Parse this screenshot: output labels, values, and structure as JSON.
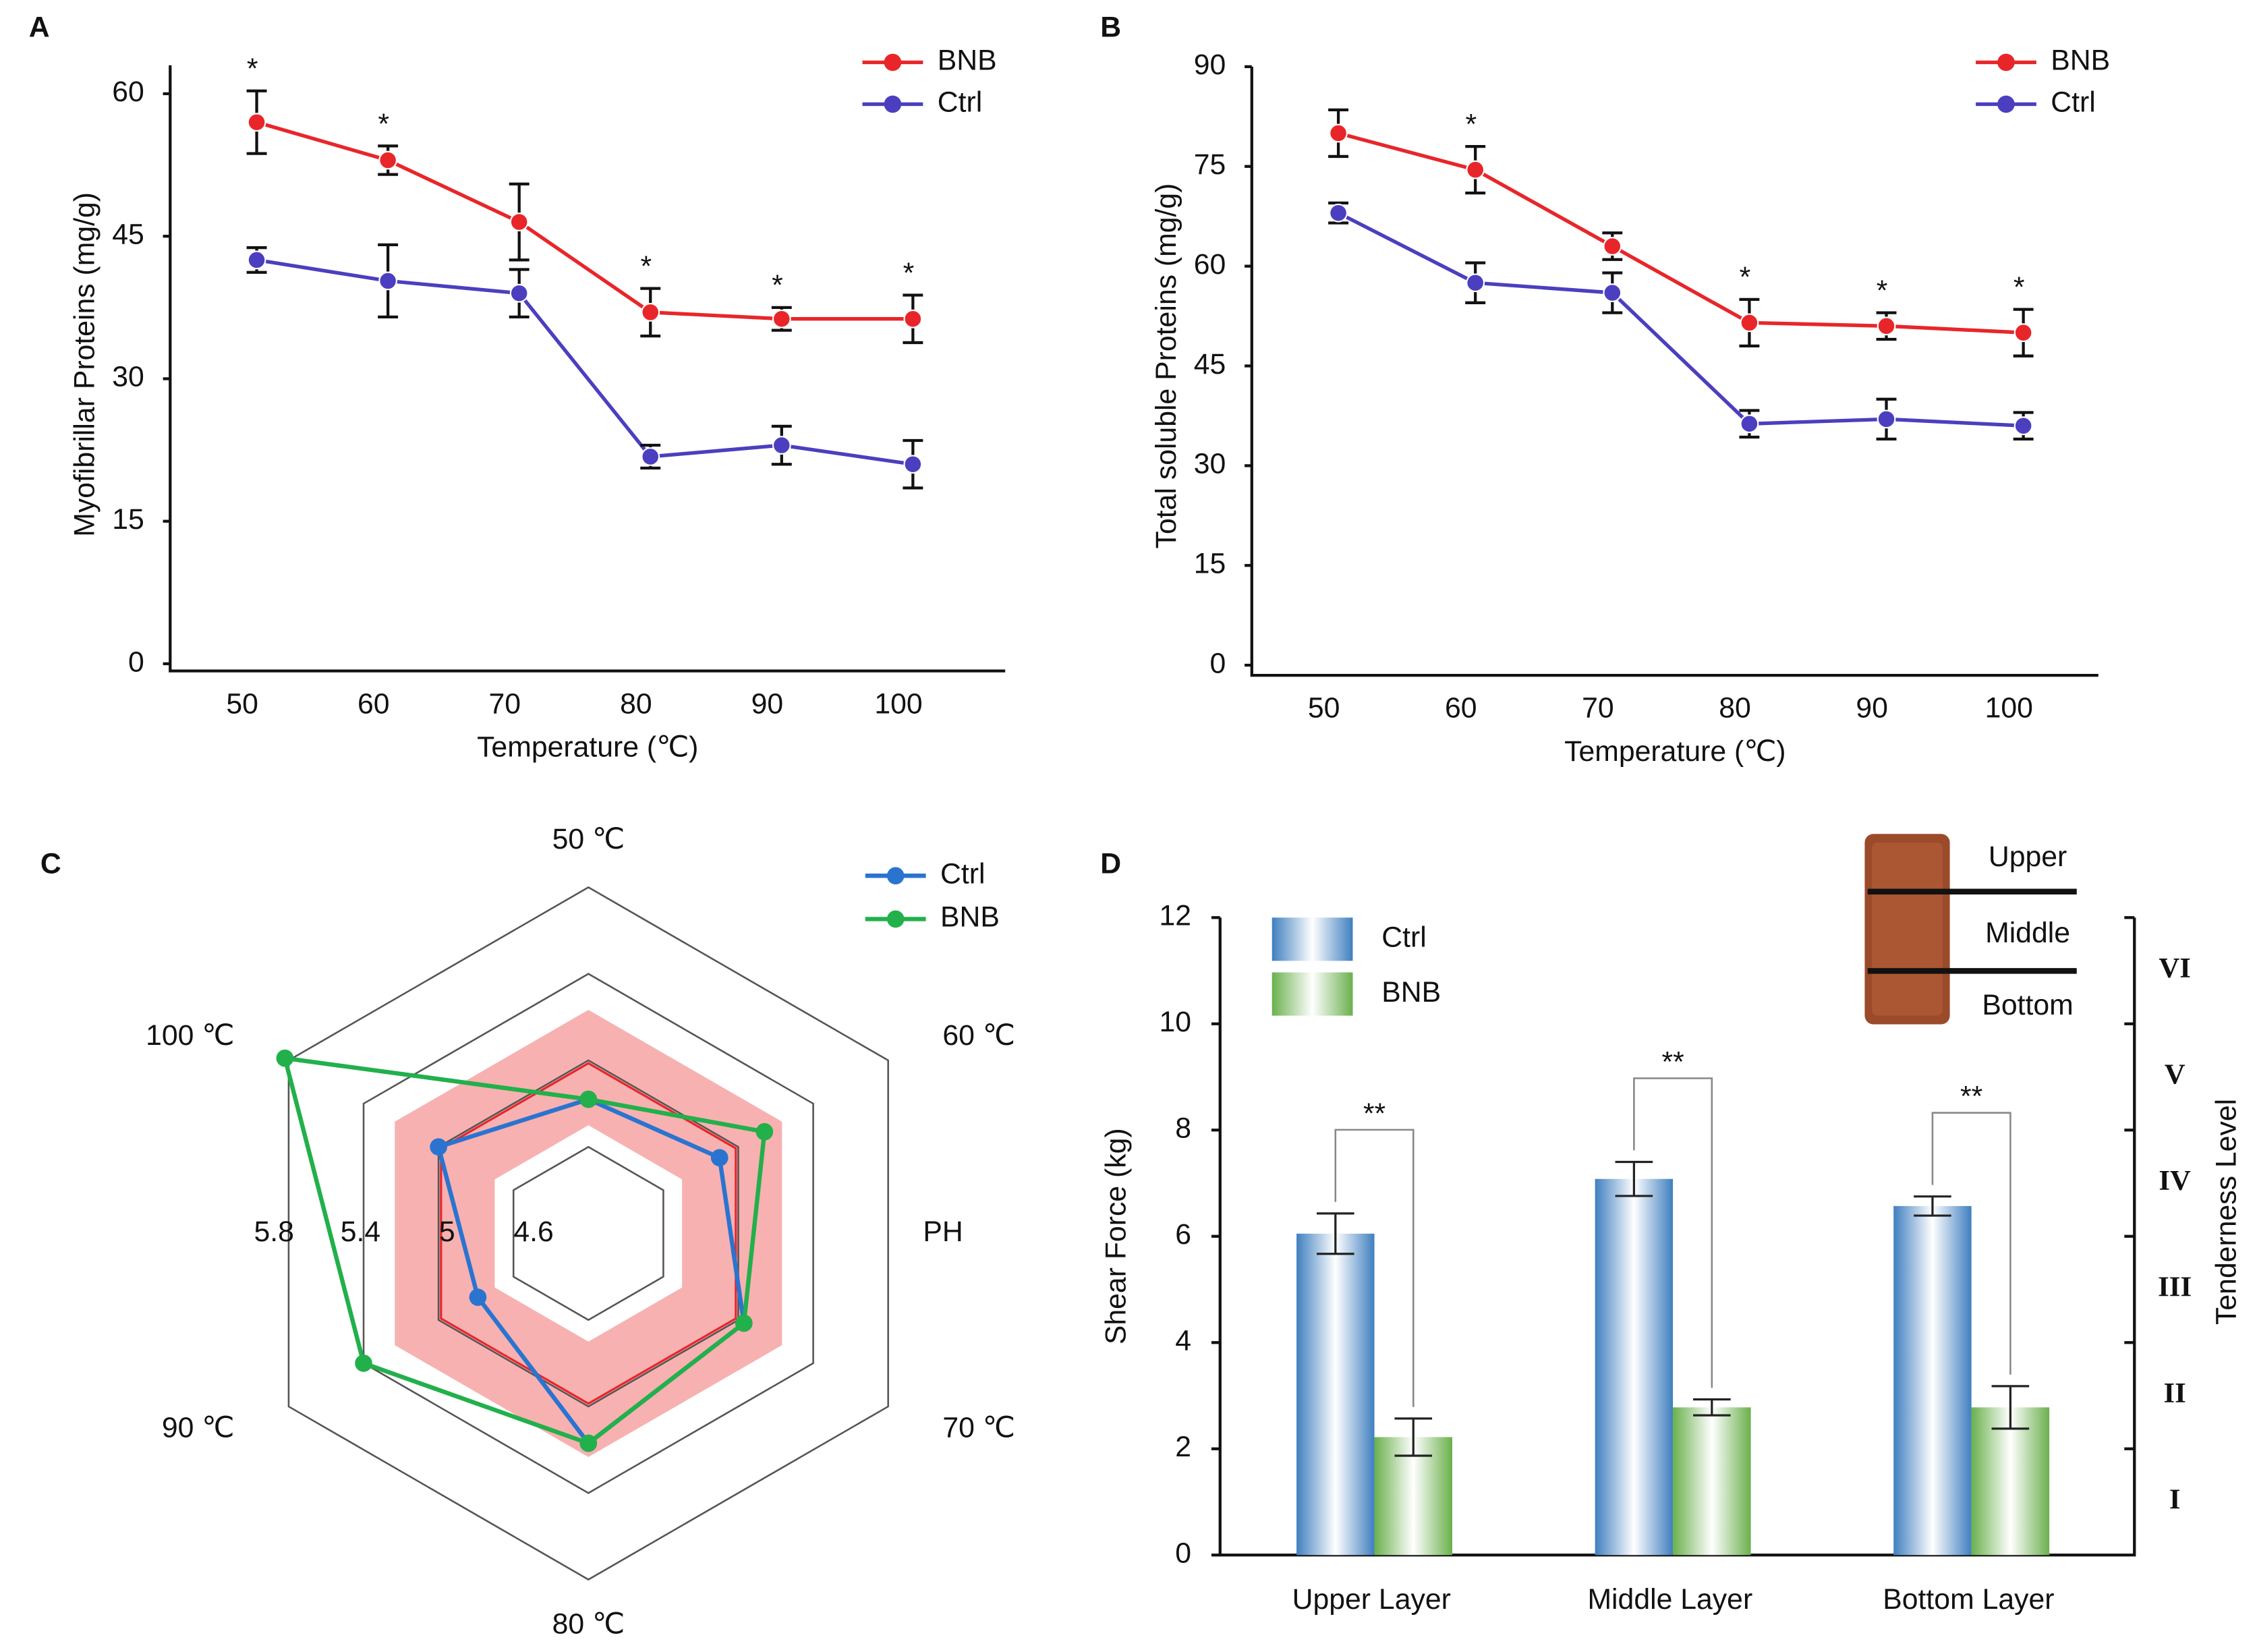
{
  "chart_data": [
    {
      "type": "line",
      "panel_label": "A",
      "ylabel": "Myofibrillar Proteins (mg/g)",
      "xlabel": "Temperature (℃)",
      "categories": [
        "50",
        "60",
        "70",
        "80",
        "90",
        "100"
      ],
      "ylim": [
        0,
        63
      ],
      "yticks": [
        0,
        15,
        30,
        45,
        60
      ],
      "series": [
        {
          "name": "BNB",
          "color": "#e8262a",
          "values": [
            57,
            53,
            46.5,
            37,
            36.3,
            36.3
          ],
          "errors": [
            3.3,
            1.5,
            4,
            2.5,
            1.2,
            2.5
          ],
          "significance": [
            "*",
            "*",
            null,
            "*",
            "*",
            "*"
          ]
        },
        {
          "name": "Ctrl",
          "color": "#4b3fbf",
          "values": [
            42.5,
            40.3,
            39,
            21.8,
            23,
            21
          ],
          "errors": [
            1.3,
            3.8,
            2.5,
            1.2,
            2,
            2.5
          ]
        }
      ]
    },
    {
      "type": "line",
      "panel_label": "B",
      "ylabel": "Total soluble Proteins (mg/g)",
      "xlabel": "Temperature (℃)",
      "categories": [
        "50",
        "60",
        "70",
        "80",
        "90",
        "100"
      ],
      "ylim": [
        0,
        90
      ],
      "yticks": [
        0,
        15,
        30,
        45,
        60,
        75,
        90
      ],
      "series": [
        {
          "name": "BNB",
          "color": "#e8262a",
          "values": [
            80,
            74.5,
            63,
            51.5,
            51,
            50
          ],
          "errors": [
            3.5,
            3.5,
            2,
            3.5,
            2,
            3.5
          ],
          "significance": [
            null,
            "*",
            null,
            "*",
            "*",
            "*"
          ]
        },
        {
          "name": "Ctrl",
          "color": "#4b3fbf",
          "values": [
            68,
            57.5,
            56,
            36.3,
            37,
            36
          ],
          "errors": [
            1.5,
            3,
            3,
            2,
            3,
            2
          ]
        }
      ]
    },
    {
      "type": "radar",
      "panel_label": "C",
      "axis_label": "PH",
      "categories": [
        "50 ℃",
        "60 ℃",
        "70 ℃",
        "80 ℃",
        "90 ℃",
        "100 ℃"
      ],
      "rlim": [
        4.2,
        5.8
      ],
      "rticks": [
        4.6,
        5.0,
        5.4,
        5.8
      ],
      "series": [
        {
          "name": "Ctrl",
          "color": "#2a74d0",
          "values": [
            4.82,
            4.9,
            5.03,
            5.17,
            4.79,
            5.0
          ]
        },
        {
          "name": "BNB",
          "color": "#22b04b",
          "values": [
            4.82,
            5.14,
            5.03,
            5.17,
            5.4,
            5.82
          ]
        }
      ]
    },
    {
      "type": "bar",
      "panel_label": "D",
      "ylabel": "Shear Force (kg)",
      "y2label": "Tenderness Level",
      "categories": [
        "Upper Layer",
        "Middle Layer",
        "Bottom Layer"
      ],
      "ylim": [
        0,
        12
      ],
      "yticks": [
        0,
        2,
        4,
        6,
        8,
        10,
        12
      ],
      "series": [
        {
          "name": "Ctrl",
          "color": "#3f7fbf",
          "values": [
            6.05,
            7.08,
            6.57
          ],
          "errors": [
            0.38,
            0.32,
            0.18
          ]
        },
        {
          "name": "BNB",
          "color": "#6ab04c",
          "values": [
            2.22,
            2.78,
            2.78
          ],
          "errors": [
            0.35,
            0.15,
            0.4
          ]
        }
      ],
      "significance": [
        "**",
        "**",
        "**"
      ],
      "levels": [
        {
          "label": "I",
          "color": "#f2a3a3"
        },
        {
          "label": "II",
          "color": "#f5c200"
        },
        {
          "label": "III",
          "color": "#1fae4b"
        },
        {
          "label": "IV",
          "color": "#22aee8"
        },
        {
          "label": "V",
          "color": "#1f73c4"
        },
        {
          "label": "VI",
          "color": "#7b3fa0"
        }
      ],
      "inset_labels": [
        "Upper",
        "Middle",
        "Bottom"
      ]
    }
  ]
}
